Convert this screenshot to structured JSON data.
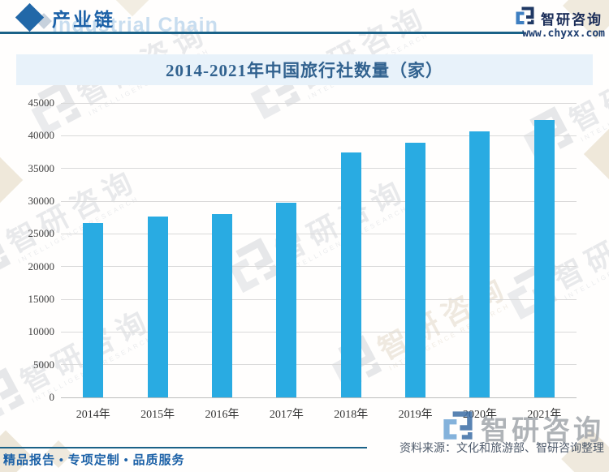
{
  "header": {
    "section_title": "产业链",
    "section_title_en": "Industrial Chain",
    "brand_name": "智研咨询",
    "brand_url": "www.chyxx.com"
  },
  "chart_data": {
    "type": "bar",
    "title": "2014-2021年中国旅行社数量（家）",
    "categories": [
      "2014年",
      "2015年",
      "2016年",
      "2017年",
      "2018年",
      "2019年",
      "2020年",
      "2021年"
    ],
    "values": [
      26650,
      27620,
      28000,
      29750,
      37400,
      38950,
      40680,
      42430
    ],
    "xlabel": "",
    "ylabel": "",
    "ylim": [
      0,
      45000
    ],
    "ytick_step": 5000,
    "grid": true,
    "legend": "none",
    "bar_color": "#29ABE2",
    "unit": "家"
  },
  "footer": {
    "tagline": "精品报告 • 专项定制 • 品质服务",
    "source": "资料来源：文化和旅游部、智研咨询整理",
    "brand_name": "智研咨询"
  },
  "watermark": {
    "text": "智研咨询",
    "subtext": "INTELLIGENCE RESEARCH"
  },
  "colors": {
    "accent_blue": "#1C61A7",
    "rule_blue": "#1B6288",
    "bar_blue": "#29ABE2",
    "title_text": "#31628F",
    "title_band_bg": "#E8F2FA",
    "logo_navy": "#1F3864",
    "logo_light_blue": "#3E7FC1",
    "axis_text": "#404040",
    "source_text": "#4E5A6B",
    "gridline": "#D9D9D9"
  }
}
